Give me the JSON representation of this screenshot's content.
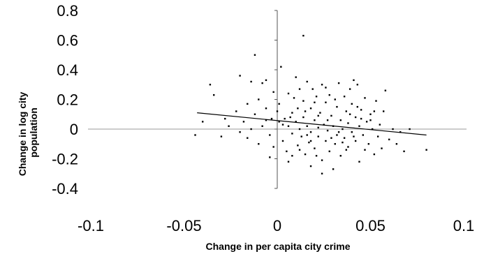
{
  "chart_data": {
    "type": "scatter",
    "title": "",
    "xlabel": "Change in per capita city crime",
    "ylabel_lines": [
      "Change in log city",
      "population"
    ],
    "xlim": [
      -0.1,
      0.1
    ],
    "ylim": [
      -0.4,
      0.8
    ],
    "x_ticks": [
      {
        "value": -0.1,
        "label": "-0.1"
      },
      {
        "value": -0.05,
        "label": "-0.05"
      },
      {
        "value": 0,
        "label": "0"
      },
      {
        "value": 0.05,
        "label": "0.05"
      },
      {
        "value": 0.1,
        "label": "0.1"
      }
    ],
    "y_ticks": [
      {
        "value": 0.8,
        "label": "0.8"
      },
      {
        "value": 0.6,
        "label": "0.6"
      },
      {
        "value": 0.4,
        "label": "0.4"
      },
      {
        "value": 0.2,
        "label": "0.2"
      },
      {
        "value": 0,
        "label": "0"
      },
      {
        "value": -0.2,
        "label": "-0.2"
      },
      {
        "value": -0.4,
        "label": "-0.4"
      }
    ],
    "grid": false,
    "trend_line": {
      "x": [
        -0.043,
        0.08
      ],
      "y": [
        0.11,
        -0.04
      ]
    },
    "points": [
      [
        0.014,
        0.63
      ],
      [
        -0.012,
        0.5
      ],
      [
        -0.036,
        0.3
      ],
      [
        -0.034,
        0.23
      ],
      [
        -0.02,
        0.36
      ],
      [
        -0.014,
        0.32
      ],
      [
        -0.008,
        0.31
      ],
      [
        -0.006,
        0.33
      ],
      [
        -0.01,
        0.2
      ],
      [
        -0.016,
        0.17
      ],
      [
        -0.022,
        0.12
      ],
      [
        -0.028,
        0.07
      ],
      [
        -0.04,
        0.05
      ],
      [
        -0.044,
        -0.04
      ],
      [
        -0.03,
        -0.05
      ],
      [
        -0.026,
        0.02
      ],
      [
        -0.02,
        -0.02
      ],
      [
        -0.018,
        0.05
      ],
      [
        -0.016,
        -0.06
      ],
      [
        -0.014,
        0.0
      ],
      [
        -0.012,
        0.1
      ],
      [
        -0.01,
        -0.1
      ],
      [
        -0.008,
        0.02
      ],
      [
        -0.006,
        0.06
      ],
      [
        -0.004,
        -0.04
      ],
      [
        -0.002,
        -0.12
      ],
      [
        -0.004,
        -0.19
      ],
      [
        -0.006,
        0.14
      ],
      [
        -0.002,
        0.25
      ],
      [
        0.0,
        0.12
      ],
      [
        0.002,
        0.42
      ],
      [
        0.001,
        0.17
      ],
      [
        0.003,
        -0.08
      ],
      [
        0.004,
        0.07
      ],
      [
        0.005,
        -0.15
      ],
      [
        0.006,
        -0.22
      ],
      [
        0.006,
        0.02
      ],
      [
        0.008,
        0.11
      ],
      [
        0.008,
        -0.03
      ],
      [
        0.009,
        0.21
      ],
      [
        0.01,
        0.05
      ],
      [
        0.01,
        0.35
      ],
      [
        0.011,
        -0.11
      ],
      [
        0.012,
        0.27
      ],
      [
        0.012,
        0.0
      ],
      [
        0.013,
        -0.05
      ],
      [
        0.014,
        0.19
      ],
      [
        0.014,
        0.08
      ],
      [
        0.015,
        -0.17
      ],
      [
        0.016,
        0.32
      ],
      [
        0.016,
        0.02
      ],
      [
        0.017,
        -0.09
      ],
      [
        0.018,
        0.14
      ],
      [
        0.018,
        -0.02
      ],
      [
        0.019,
        0.27
      ],
      [
        0.02,
        0.06
      ],
      [
        0.02,
        -0.13
      ],
      [
        0.021,
        0.22
      ],
      [
        0.022,
        -0.05
      ],
      [
        0.022,
        0.01
      ],
      [
        0.023,
        0.11
      ],
      [
        0.024,
        -0.21
      ],
      [
        0.024,
        0.3
      ],
      [
        0.025,
        0.03
      ],
      [
        0.026,
        -0.08
      ],
      [
        0.026,
        0.18
      ],
      [
        0.027,
        -0.01
      ],
      [
        0.028,
        0.23
      ],
      [
        0.028,
        -0.15
      ],
      [
        0.029,
        0.09
      ],
      [
        0.03,
        0.02
      ],
      [
        0.03,
        -0.27
      ],
      [
        0.031,
        -0.1
      ],
      [
        0.032,
        0.15
      ],
      [
        0.032,
        -0.04
      ],
      [
        0.033,
        0.31
      ],
      [
        0.034,
        0.06
      ],
      [
        0.034,
        -0.18
      ],
      [
        0.035,
        0.0
      ],
      [
        0.036,
        0.22
      ],
      [
        0.036,
        -0.06
      ],
      [
        0.037,
        0.12
      ],
      [
        0.038,
        -0.12
      ],
      [
        0.038,
        0.04
      ],
      [
        0.039,
        0.27
      ],
      [
        0.04,
        -0.02
      ],
      [
        0.04,
        0.17
      ],
      [
        0.041,
        0.33
      ],
      [
        0.042,
        -0.08
      ],
      [
        0.042,
        0.08
      ],
      [
        0.043,
        0.3
      ],
      [
        0.044,
        0.02
      ],
      [
        0.044,
        -0.22
      ],
      [
        0.045,
        0.13
      ],
      [
        0.046,
        -0.04
      ],
      [
        0.047,
        0.21
      ],
      [
        0.048,
        0.05
      ],
      [
        0.049,
        -0.1
      ],
      [
        0.05,
        0.1
      ],
      [
        0.051,
        0.0
      ],
      [
        0.052,
        -0.17
      ],
      [
        0.053,
        0.19
      ],
      [
        0.054,
        -0.05
      ],
      [
        0.055,
        0.03
      ],
      [
        0.056,
        -0.13
      ],
      [
        0.058,
        0.26
      ],
      [
        0.06,
        -0.07
      ],
      [
        0.062,
        0.0
      ],
      [
        0.064,
        -0.1
      ],
      [
        0.066,
        -0.02
      ],
      [
        0.068,
        -0.15
      ],
      [
        0.071,
        0.0
      ],
      [
        0.08,
        -0.14
      ],
      [
        0.052,
        0.12
      ],
      [
        0.024,
        -0.3
      ],
      [
        0.018,
        -0.25
      ],
      [
        0.007,
        0.08
      ],
      [
        0.003,
        0.03
      ],
      [
        0.015,
        0.12
      ],
      [
        0.02,
        0.18
      ],
      [
        0.027,
        0.06
      ],
      [
        0.033,
        -0.02
      ],
      [
        0.045,
        0.07
      ],
      [
        0.039,
        0.1
      ],
      [
        0.008,
        -0.18
      ],
      [
        0.012,
        -0.14
      ],
      [
        0.018,
        -0.08
      ],
      [
        0.022,
        0.09
      ],
      [
        0.029,
        -0.06
      ],
      [
        0.035,
        -0.09
      ],
      [
        0.041,
        -0.05
      ],
      [
        0.047,
        -0.14
      ],
      [
        0.05,
        0.06
      ],
      [
        0.011,
        0.14
      ],
      [
        -0.003,
        0.07
      ],
      [
        0.001,
        0.05
      ],
      [
        0.016,
        -0.04
      ],
      [
        0.026,
        0.28
      ],
      [
        0.031,
        0.2
      ],
      [
        0.037,
        -0.14
      ],
      [
        0.043,
        0.15
      ],
      [
        0.057,
        0.12
      ],
      [
        0.021,
        -0.18
      ],
      [
        0.006,
        0.24
      ]
    ]
  }
}
